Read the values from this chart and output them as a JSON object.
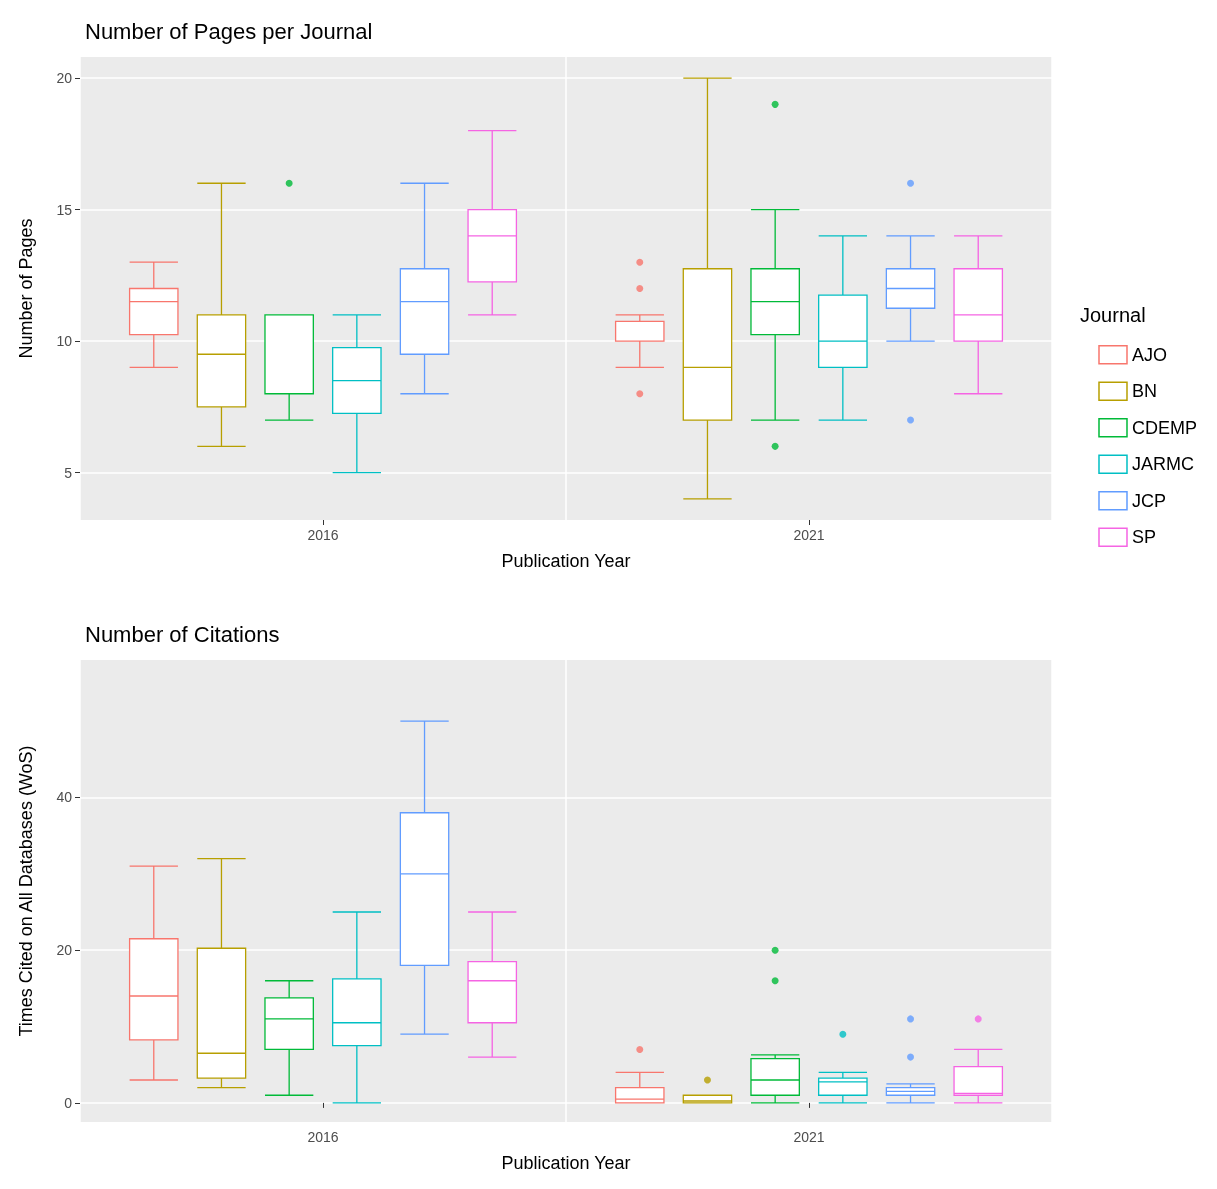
{
  "chart_data": [
    {
      "type": "box",
      "title": "Number of Pages per Journal",
      "xlabel": "Publication Year",
      "ylabel": "Number of Pages",
      "categories": [
        "2016",
        "2021"
      ],
      "ylim": [
        3.2,
        20.8
      ],
      "yticks": [
        5,
        10,
        15,
        20
      ],
      "grid": true,
      "marker": "circle",
      "legend": "right",
      "legend_title": "Journal",
      "series": [
        {
          "name": "AJO",
          "color": "#f8766d",
          "boxes": [
            {
              "low": 9,
              "q1": 10.25,
              "median": 11.5,
              "q3": 12,
              "high": 13
            },
            {
              "low": 9,
              "q1": 10,
              "median": 10,
              "q3": 10.75,
              "high": 11,
              "outliers": [
                13,
                12,
                8
              ]
            }
          ]
        },
        {
          "name": "BN",
          "color": "#b79f00",
          "boxes": [
            {
              "low": 6,
              "q1": 7.5,
              "median": 9.5,
              "q3": 11,
              "high": 16
            },
            {
              "low": 4,
              "q1": 7,
              "median": 9,
              "q3": 12.75,
              "high": 20
            }
          ]
        },
        {
          "name": "CDEMP",
          "color": "#00ba38",
          "boxes": [
            {
              "low": 7,
              "q1": 8,
              "median": 11,
              "q3": 11,
              "high": 11,
              "outliers": [
                16
              ]
            },
            {
              "low": 7,
              "q1": 10.25,
              "median": 11.5,
              "q3": 12.75,
              "high": 15,
              "outliers": [
                19,
                6
              ]
            }
          ]
        },
        {
          "name": "JARMC",
          "color": "#00bfc4",
          "boxes": [
            {
              "low": 5,
              "q1": 7.25,
              "median": 8.5,
              "q3": 9.75,
              "high": 11
            },
            {
              "low": 7,
              "q1": 9,
              "median": 10,
              "q3": 11.75,
              "high": 14
            }
          ]
        },
        {
          "name": "JCP",
          "color": "#619cff",
          "boxes": [
            {
              "low": 8,
              "q1": 9.5,
              "median": 11.5,
              "q3": 12.75,
              "high": 16
            },
            {
              "low": 10,
              "q1": 11.25,
              "median": 12,
              "q3": 12.75,
              "high": 14,
              "outliers": [
                16,
                7
              ]
            }
          ]
        },
        {
          "name": "SP",
          "color": "#f564e3",
          "boxes": [
            {
              "low": 11,
              "q1": 12.25,
              "median": 14,
              "q3": 15,
              "high": 18
            },
            {
              "low": 8,
              "q1": 10,
              "median": 11,
              "q3": 12.75,
              "high": 14
            }
          ]
        }
      ]
    },
    {
      "type": "box",
      "title": "Number of Citations",
      "xlabel": "Publication Year",
      "ylabel": "Times Cited on All Databases (WoS)",
      "categories": [
        "2016",
        "2021"
      ],
      "ylim": [
        -2.5,
        58
      ],
      "yticks": [
        0,
        20,
        40
      ],
      "grid": true,
      "marker": "circle",
      "series": [
        {
          "color": "#f8766d",
          "boxes": [
            {
              "low": 3,
              "q1": 8.25,
              "median": 14,
              "q3": 21.5,
              "high": 31
            },
            {
              "low": 0,
              "q1": 0,
              "median": 0.5,
              "q3": 2,
              "high": 4,
              "outliers": [
                7
              ]
            }
          ]
        },
        {
          "color": "#b79f00",
          "boxes": [
            {
              "low": 2,
              "q1": 3.25,
              "median": 6.5,
              "q3": 20.25,
              "high": 32
            },
            {
              "low": 0,
              "q1": 0,
              "median": 0.25,
              "q3": 1,
              "high": 1,
              "outliers": [
                3
              ]
            }
          ]
        },
        {
          "color": "#00ba38",
          "boxes": [
            {
              "low": 1,
              "q1": 7,
              "median": 11,
              "q3": 13.75,
              "high": 16
            },
            {
              "low": 0,
              "q1": 1,
              "median": 3,
              "q3": 5.8,
              "high": 6.3,
              "outliers": [
                20,
                16
              ]
            }
          ]
        },
        {
          "color": "#00bfc4",
          "boxes": [
            {
              "low": 0,
              "q1": 7.5,
              "median": 10.5,
              "q3": 16.25,
              "high": 25
            },
            {
              "low": 0,
              "q1": 1,
              "median": 2.75,
              "q3": 3.25,
              "high": 4,
              "outliers": [
                9
              ]
            }
          ]
        },
        {
          "color": "#619cff",
          "boxes": [
            {
              "low": 9,
              "q1": 18,
              "median": 30,
              "q3": 38,
              "high": 50
            },
            {
              "low": 0,
              "q1": 1,
              "median": 1.5,
              "q3": 2,
              "high": 2.5,
              "outliers": [
                11,
                6
              ]
            }
          ]
        },
        {
          "color": "#f564e3",
          "boxes": [
            {
              "low": 6,
              "q1": 10.5,
              "median": 16,
              "q3": 18.5,
              "high": 25
            },
            {
              "low": 0,
              "q1": 1,
              "median": 1.25,
              "q3": 4.75,
              "high": 7,
              "outliers": [
                11
              ]
            }
          ]
        }
      ]
    }
  ]
}
